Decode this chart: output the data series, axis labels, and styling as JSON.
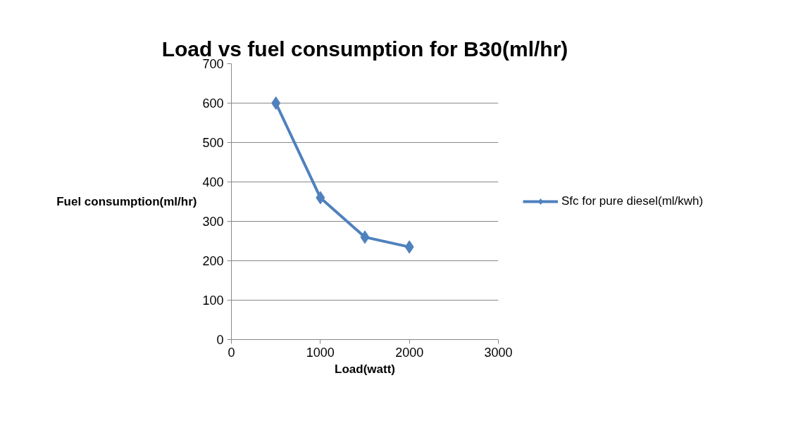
{
  "chart_data": {
    "type": "line",
    "title": "Load vs fuel consumption for B30(ml/hr)",
    "xlabel": "Load(watt)",
    "ylabel": "Fuel consumption(ml/hr)",
    "x": [
      500,
      1000,
      1500,
      2000
    ],
    "series": [
      {
        "name": "Sfc for pure diesel(ml/kwh)",
        "color": "#4f81bd",
        "values": [
          600,
          360,
          260,
          235
        ]
      }
    ],
    "xlim": [
      0,
      3000
    ],
    "xticks": [
      0,
      1000,
      2000,
      3000
    ],
    "ylim": [
      0,
      700
    ],
    "yticks": [
      0,
      100,
      200,
      300,
      400,
      500,
      600,
      700
    ],
    "grid": "y",
    "legend": "right",
    "marker": "diamond",
    "line_style": "solid"
  }
}
